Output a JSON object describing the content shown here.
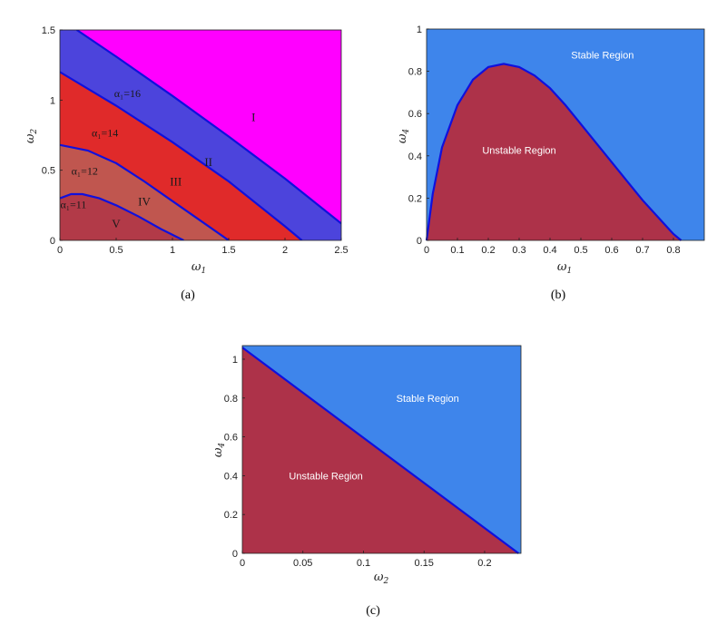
{
  "chart_data": [
    {
      "id": "a",
      "type": "area",
      "caption": "(a)",
      "xlabel": "ω1",
      "ylabel": "ω2",
      "xlim": [
        0,
        2.5
      ],
      "ylim": [
        0,
        1.5
      ],
      "xticks": [
        0,
        0.5,
        1,
        1.5,
        2,
        2.5
      ],
      "yticks": [
        0,
        0.5,
        1,
        1.5
      ],
      "xtick_labels": [
        "0",
        "0.5",
        "1",
        "1.5",
        "2",
        "2.5"
      ],
      "ytick_labels": [
        "0",
        "0.5",
        "1",
        "1.5"
      ],
      "boundaries": [
        {
          "label": "α₁=11",
          "x": [
            0,
            0.1,
            0.2,
            0.35,
            0.5,
            0.7,
            0.9,
            1.1
          ],
          "y": [
            0.3,
            0.33,
            0.33,
            0.3,
            0.25,
            0.17,
            0.08,
            0
          ]
        },
        {
          "label": "α₁=12",
          "x": [
            0,
            0.25,
            0.5,
            0.75,
            1.0,
            1.25,
            1.5
          ],
          "y": [
            0.68,
            0.64,
            0.55,
            0.42,
            0.28,
            0.14,
            0
          ]
        },
        {
          "label": "α₁=14",
          "x": [
            0,
            0.5,
            1.0,
            1.5,
            2.0,
            2.15
          ],
          "y": [
            1.2,
            0.96,
            0.7,
            0.42,
            0.1,
            0
          ]
        },
        {
          "label": "α₁=16",
          "x": [
            0.15,
            0.5,
            1.0,
            1.5,
            2.0,
            2.5
          ],
          "y": [
            1.5,
            1.31,
            1.03,
            0.74,
            0.44,
            0.12
          ]
        }
      ],
      "region_colors": [
        "#b23a48",
        "#c0564f",
        "#e02a2a",
        "#4c44dc",
        "#ff00ff"
      ],
      "region_labels": [
        {
          "text": "V",
          "x": 0.5,
          "y": 0.09
        },
        {
          "text": "IV",
          "x": 0.75,
          "y": 0.25
        },
        {
          "text": "III",
          "x": 1.03,
          "y": 0.39
        },
        {
          "text": "II",
          "x": 1.32,
          "y": 0.53
        },
        {
          "text": "I",
          "x": 1.72,
          "y": 0.85
        }
      ],
      "alpha_labels": [
        {
          "text": "α₁=11",
          "x": 0.12,
          "y": 0.23
        },
        {
          "text": "α₁=12",
          "x": 0.22,
          "y": 0.47
        },
        {
          "text": "α₁=14",
          "x": 0.4,
          "y": 0.74
        },
        {
          "text": "α₁=16",
          "x": 0.6,
          "y": 1.02
        }
      ]
    },
    {
      "id": "b",
      "type": "area",
      "caption": "(b)",
      "xlabel": "ω1",
      "ylabel": "ω4",
      "xlim": [
        0,
        0.9
      ],
      "ylim": [
        0,
        1
      ],
      "xticks": [
        0,
        0.1,
        0.2,
        0.3,
        0.4,
        0.5,
        0.6,
        0.7,
        0.8
      ],
      "yticks": [
        0,
        0.2,
        0.4,
        0.6,
        0.8,
        1
      ],
      "xtick_labels": [
        "0",
        "0.1",
        "0.2",
        "0.3",
        "0.4",
        "0.5",
        "0.6",
        "0.7",
        "0.8"
      ],
      "ytick_labels": [
        "0",
        "0.2",
        "0.4",
        "0.6",
        "0.8",
        "1"
      ],
      "boundary": {
        "x": [
          0,
          0.02,
          0.05,
          0.1,
          0.15,
          0.2,
          0.25,
          0.3,
          0.35,
          0.4,
          0.45,
          0.5,
          0.55,
          0.6,
          0.65,
          0.7,
          0.75,
          0.8,
          0.825
        ],
        "y": [
          0,
          0.22,
          0.44,
          0.64,
          0.76,
          0.82,
          0.835,
          0.82,
          0.78,
          0.72,
          0.64,
          0.55,
          0.46,
          0.37,
          0.28,
          0.19,
          0.11,
          0.03,
          0
        ]
      },
      "region_colors": {
        "stable": "#3e85eb",
        "unstable": "#ad3249"
      },
      "labels": [
        {
          "text": "Stable Region",
          "x": 0.57,
          "y": 0.86
        },
        {
          "text": "Unstable Region",
          "x": 0.3,
          "y": 0.41
        }
      ]
    },
    {
      "id": "c",
      "type": "area",
      "caption": "(c)",
      "xlabel": "ω2",
      "ylabel": "ω4",
      "xlim": [
        0,
        0.23
      ],
      "ylim": [
        0,
        1.07
      ],
      "xticks": [
        0,
        0.05,
        0.1,
        0.15,
        0.2
      ],
      "yticks": [
        0,
        0.2,
        0.4,
        0.6,
        0.8,
        1
      ],
      "xtick_labels": [
        "0",
        "0.05",
        "0.1",
        "0.15",
        "0.2"
      ],
      "ytick_labels": [
        "0",
        "0.2",
        "0.4",
        "0.6",
        "0.8",
        "1"
      ],
      "boundary": {
        "x": [
          0,
          0.228
        ],
        "y": [
          1.06,
          0
        ]
      },
      "region_colors": {
        "stable": "#3e85eb",
        "unstable": "#ad3249"
      },
      "labels": [
        {
          "text": "Stable Region",
          "x": 0.153,
          "y": 0.78
        },
        {
          "text": "Unstable Region",
          "x": 0.069,
          "y": 0.38
        }
      ]
    }
  ]
}
